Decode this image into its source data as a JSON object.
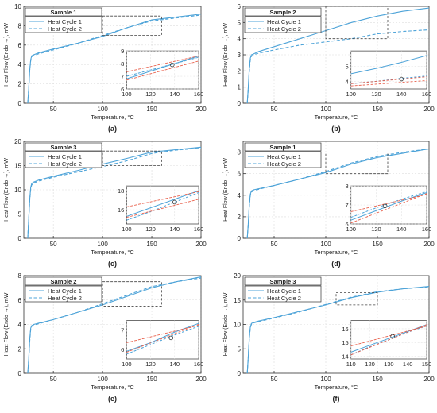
{
  "colors": {
    "cycle1": "#4da3d8",
    "cycle2": "#4da3d8",
    "inset_line": "#e8604c",
    "axis": "#333333",
    "grid": "#dddddd",
    "box": "#444444"
  },
  "chart_data": [
    {
      "type": "line",
      "panel": "(a)",
      "xlabel": "Temperature, °C",
      "ylabel": "Heat Flow (Endo →), mW",
      "xlim": [
        20,
        200
      ],
      "ylim": [
        0,
        10
      ],
      "xticks": [
        50,
        100,
        150,
        200
      ],
      "yticks": [
        0,
        2,
        4,
        6,
        8,
        10
      ],
      "grid": true,
      "legend_title": "Sample 1",
      "legend_position": "top-left",
      "series": [
        {
          "name": "Heat Cycle 1",
          "style": "solid",
          "x": [
            24,
            25,
            26,
            27,
            28,
            30,
            35,
            50,
            75,
            100,
            125,
            150,
            175,
            200
          ],
          "y": [
            0,
            1.5,
            3.4,
            4.5,
            4.9,
            5.0,
            5.2,
            5.6,
            6.2,
            6.9,
            7.8,
            8.6,
            8.9,
            9.2
          ]
        },
        {
          "name": "Heat Cycle 2",
          "style": "dashed",
          "x": [
            24,
            25,
            26,
            27,
            28,
            30,
            35,
            50,
            75,
            100,
            125,
            150,
            175,
            200
          ],
          "y": [
            0,
            1.5,
            3.4,
            4.4,
            4.8,
            4.9,
            5.1,
            5.5,
            6.2,
            7.0,
            7.8,
            8.5,
            8.8,
            9.1
          ]
        }
      ],
      "zoom_box": {
        "x": [
          100,
          160
        ],
        "y": [
          7,
          9
        ]
      },
      "inset": {
        "xlim": [
          100,
          160
        ],
        "ylim": [
          6,
          9
        ],
        "xticks": [
          100,
          120,
          140,
          160
        ],
        "yticks": [
          6,
          7,
          8,
          9
        ],
        "series": [
          {
            "name": "Heat Cycle 1",
            "style": "solid",
            "x": [
              100,
              120,
              140,
              160
            ],
            "y": [
              6.8,
              7.4,
              8.0,
              8.6
            ]
          },
          {
            "name": "Heat Cycle 2",
            "style": "dashed",
            "x": [
              100,
              120,
              140,
              160
            ],
            "y": [
              7.0,
              7.5,
              8.0,
              8.5
            ]
          }
        ],
        "fit_lines": [
          {
            "x": [
              100,
              160
            ],
            "y": [
              7.35,
              8.6
            ]
          },
          {
            "x": [
              100,
              160
            ],
            "y": [
              6.7,
              8.2
            ]
          }
        ],
        "marker": {
          "x": 138,
          "y": 7.9
        }
      }
    },
    {
      "type": "line",
      "panel": "(b)",
      "xlabel": "Temperature, °C",
      "ylabel": "Heat Flow (Endo →), mW",
      "xlim": [
        20,
        200
      ],
      "ylim": [
        0,
        6
      ],
      "xticks": [
        50,
        100,
        150,
        200
      ],
      "yticks": [
        0,
        1,
        2,
        3,
        4,
        5,
        6
      ],
      "grid": true,
      "legend_title": "Sample 2",
      "legend_position": "top-left",
      "series": [
        {
          "name": "Heat Cycle 1",
          "style": "solid",
          "x": [
            24,
            25,
            26,
            27,
            28,
            30,
            35,
            50,
            75,
            100,
            125,
            150,
            175,
            200
          ],
          "y": [
            0,
            1.0,
            2.2,
            2.8,
            3.0,
            3.05,
            3.2,
            3.5,
            4.0,
            4.5,
            5.0,
            5.4,
            5.7,
            5.9
          ]
        },
        {
          "name": "Heat Cycle 2",
          "style": "dashed",
          "x": [
            24,
            25,
            26,
            27,
            28,
            30,
            35,
            50,
            75,
            100,
            125,
            150,
            175,
            200
          ],
          "y": [
            0,
            0.9,
            2.0,
            2.7,
            2.9,
            3.0,
            3.1,
            3.3,
            3.6,
            3.8,
            4.0,
            4.3,
            4.45,
            4.55
          ]
        }
      ],
      "zoom_box": {
        "x": [
          100,
          160
        ],
        "y": [
          4,
          6
        ]
      },
      "inset": {
        "xlim": [
          100,
          160
        ],
        "ylim": [
          3.5,
          6
        ],
        "xticks": [
          100,
          120,
          140,
          160
        ],
        "yticks": [
          4,
          5
        ],
        "series": [
          {
            "name": "Heat Cycle 1",
            "style": "solid",
            "x": [
              100,
              120,
              140,
              160
            ],
            "y": [
              4.5,
              4.85,
              5.25,
              5.7
            ]
          },
          {
            "name": "Heat Cycle 2",
            "style": "dashed",
            "x": [
              100,
              120,
              140,
              160
            ],
            "y": [
              3.85,
              4.0,
              4.2,
              4.35
            ]
          }
        ],
        "fit_lines": [
          {
            "x": [
              100,
              160
            ],
            "y": [
              3.85,
              4.3
            ]
          },
          {
            "x": [
              100,
              160
            ],
            "y": [
              3.7,
              4.05
            ]
          }
        ],
        "marker": {
          "x": 140,
          "y": 4.15
        }
      }
    },
    {
      "type": "line",
      "panel": "(c)",
      "xlabel": "Temperature, °C",
      "ylabel": "Heat Flow (Endo →), mW",
      "xlim": [
        20,
        200
      ],
      "ylim": [
        0,
        20
      ],
      "xticks": [
        50,
        100,
        150,
        200
      ],
      "yticks": [
        0,
        5,
        10,
        15,
        20
      ],
      "grid": true,
      "legend_title": "Sample 3",
      "legend_position": "top-left",
      "series": [
        {
          "name": "Heat Cycle 1",
          "style": "solid",
          "x": [
            24,
            25,
            26,
            27,
            28,
            30,
            35,
            50,
            75,
            100,
            125,
            150,
            175,
            200
          ],
          "y": [
            0,
            4,
            8,
            10.5,
            11.3,
            11.6,
            12.0,
            12.8,
            14.0,
            15.3,
            16.5,
            17.8,
            18.3,
            18.8
          ]
        },
        {
          "name": "Heat Cycle 2",
          "style": "dashed",
          "x": [
            24,
            25,
            26,
            27,
            28,
            30,
            35,
            50,
            75,
            100,
            125,
            150,
            175,
            200
          ],
          "y": [
            0,
            4,
            7.8,
            10.2,
            11.0,
            11.4,
            11.8,
            12.6,
            13.7,
            14.8,
            16.0,
            17.5,
            18.2,
            18.6
          ]
        }
      ],
      "zoom_box": {
        "x": [
          100,
          160
        ],
        "y": [
          15,
          18
        ]
      },
      "inset": {
        "xlim": [
          100,
          160
        ],
        "ylim": [
          14.5,
          18.5
        ],
        "xticks": [
          100,
          120,
          140,
          160
        ],
        "yticks": [
          16,
          18
        ],
        "series": [
          {
            "name": "Heat Cycle 1",
            "style": "solid",
            "x": [
              100,
              120,
              140,
              160
            ],
            "y": [
              15.3,
              16.2,
              17.1,
              18.0
            ]
          },
          {
            "name": "Heat Cycle 2",
            "style": "dashed",
            "x": [
              100,
              120,
              140,
              160
            ],
            "y": [
              14.9,
              15.8,
              16.8,
              17.8
            ]
          }
        ],
        "fit_lines": [
          {
            "x": [
              100,
              160
            ],
            "y": [
              16.3,
              17.9
            ]
          },
          {
            "x": [
              100,
              160
            ],
            "y": [
              15.2,
              17.1
            ]
          }
        ],
        "marker": {
          "x": 140,
          "y": 16.8
        }
      }
    },
    {
      "type": "line",
      "panel": "(d)",
      "xlabel": "Temperature, °C",
      "ylabel": "Heat Flow (Endo →), mW",
      "xlim": [
        20,
        200
      ],
      "ylim": [
        0,
        9
      ],
      "xticks": [
        50,
        100,
        150,
        200
      ],
      "yticks": [
        0,
        2,
        4,
        6,
        8
      ],
      "grid": true,
      "legend_title": "Sample 1",
      "legend_position": "top-left",
      "series": [
        {
          "name": "Heat Cycle 1",
          "style": "solid",
          "x": [
            24,
            25,
            26,
            27,
            28,
            30,
            35,
            50,
            75,
            100,
            125,
            150,
            175,
            200
          ],
          "y": [
            0,
            1.4,
            3.2,
            4.1,
            4.4,
            4.5,
            4.6,
            4.9,
            5.5,
            6.1,
            6.9,
            7.5,
            7.9,
            8.3
          ]
        },
        {
          "name": "Heat Cycle 2",
          "style": "dashed",
          "x": [
            24,
            25,
            26,
            27,
            28,
            30,
            35,
            50,
            75,
            100,
            125,
            150,
            175,
            200
          ],
          "y": [
            0,
            1.3,
            3.0,
            4.0,
            4.3,
            4.4,
            4.55,
            4.9,
            5.5,
            6.2,
            7.0,
            7.6,
            8.0,
            8.3
          ]
        }
      ],
      "zoom_box": {
        "x": [
          100,
          160
        ],
        "y": [
          6,
          8
        ]
      },
      "inset": {
        "xlim": [
          100,
          160
        ],
        "ylim": [
          6,
          8
        ],
        "xticks": [
          100,
          120,
          140,
          160
        ],
        "yticks": [
          6,
          7,
          8
        ],
        "series": [
          {
            "name": "Heat Cycle 1",
            "style": "solid",
            "x": [
              100,
              120,
              140,
              160
            ],
            "y": [
              6.2,
              6.7,
              7.2,
              7.65
            ]
          },
          {
            "name": "Heat Cycle 2",
            "style": "dashed",
            "x": [
              100,
              120,
              140,
              160
            ],
            "y": [
              6.35,
              6.85,
              7.3,
              7.7
            ]
          }
        ],
        "fit_lines": [
          {
            "x": [
              100,
              160
            ],
            "y": [
              6.65,
              7.55
            ]
          },
          {
            "x": [
              100,
              160
            ],
            "y": [
              6.05,
              7.6
            ]
          }
        ],
        "marker": {
          "x": 127,
          "y": 6.95
        }
      }
    },
    {
      "type": "line",
      "panel": "(e)",
      "xlabel": "Temperature, °C",
      "ylabel": "Heat Flow (Endo →), mW",
      "xlim": [
        20,
        200
      ],
      "ylim": [
        0,
        8
      ],
      "xticks": [
        50,
        100,
        150,
        200
      ],
      "yticks": [
        0,
        2,
        4,
        6,
        8
      ],
      "grid": true,
      "legend_title": "Sample 2",
      "legend_position": "top-left",
      "series": [
        {
          "name": "Heat Cycle 1",
          "style": "solid",
          "x": [
            24,
            25,
            26,
            27,
            28,
            30,
            35,
            50,
            75,
            100,
            125,
            150,
            175,
            200
          ],
          "y": [
            0,
            1.2,
            2.8,
            3.7,
            3.9,
            4.0,
            4.1,
            4.4,
            5.0,
            5.6,
            6.3,
            7.0,
            7.5,
            7.9
          ]
        },
        {
          "name": "Heat Cycle 2",
          "style": "dashed",
          "x": [
            24,
            25,
            26,
            27,
            28,
            30,
            35,
            50,
            75,
            100,
            125,
            150,
            175,
            200
          ],
          "y": [
            0,
            1.1,
            2.6,
            3.6,
            3.85,
            3.95,
            4.05,
            4.4,
            5.0,
            5.7,
            6.4,
            7.1,
            7.5,
            7.8
          ]
        }
      ],
      "zoom_box": {
        "x": [
          100,
          160
        ],
        "y": [
          5.5,
          7.5
        ]
      },
      "inset": {
        "xlim": [
          100,
          160
        ],
        "ylim": [
          5.5,
          7.5
        ],
        "xticks": [
          100,
          120,
          140,
          160
        ],
        "yticks": [
          6,
          7
        ],
        "series": [
          {
            "name": "Heat Cycle 1",
            "style": "solid",
            "x": [
              100,
              120,
              140,
              160
            ],
            "y": [
              5.9,
              6.35,
              6.9,
              7.35
            ]
          },
          {
            "name": "Heat Cycle 2",
            "style": "dashed",
            "x": [
              100,
              120,
              140,
              160
            ],
            "y": [
              5.75,
              6.25,
              6.75,
              7.2
            ]
          }
        ],
        "fit_lines": [
          {
            "x": [
              100,
              160
            ],
            "y": [
              6.35,
              7.25
            ]
          },
          {
            "x": [
              100,
              160
            ],
            "y": [
              5.85,
              7.3
            ]
          }
        ],
        "marker": {
          "x": 137,
          "y": 6.6
        }
      }
    },
    {
      "type": "line",
      "panel": "(f)",
      "xlabel": "Temperature, °C",
      "ylabel": "Heat Flow (Endo →), mW",
      "xlim": [
        20,
        200
      ],
      "ylim": [
        0,
        20
      ],
      "xticks": [
        50,
        100,
        150,
        200
      ],
      "yticks": [
        0,
        5,
        10,
        15,
        20
      ],
      "grid": true,
      "legend_title": "Sample 3",
      "legend_position": "top-left",
      "series": [
        {
          "name": "Heat Cycle 1",
          "style": "solid",
          "x": [
            24,
            25,
            26,
            27,
            28,
            30,
            35,
            50,
            75,
            100,
            125,
            150,
            175,
            200
          ],
          "y": [
            0,
            3.5,
            7.5,
            9.5,
            10.2,
            10.4,
            10.7,
            11.4,
            12.7,
            14.0,
            15.5,
            16.6,
            17.3,
            17.8
          ]
        },
        {
          "name": "Heat Cycle 2",
          "style": "dashed",
          "x": [
            24,
            25,
            26,
            27,
            28,
            30,
            35,
            50,
            75,
            100,
            125,
            150,
            175,
            200
          ],
          "y": [
            0,
            3.4,
            7.2,
            9.3,
            10.0,
            10.3,
            10.6,
            11.3,
            12.6,
            14.1,
            15.6,
            16.7,
            17.3,
            17.7
          ]
        }
      ],
      "zoom_box": {
        "x": [
          110,
          150
        ],
        "y": [
          14,
          16.5
        ]
      },
      "inset": {
        "xlim": [
          110,
          150
        ],
        "ylim": [
          13.8,
          16.6
        ],
        "xticks": [
          110,
          120,
          130,
          140,
          150
        ],
        "yticks": [
          14,
          15,
          16
        ],
        "series": [
          {
            "name": "Heat Cycle 1",
            "style": "solid",
            "x": [
              110,
              120,
              130,
              140,
              150
            ],
            "y": [
              14.3,
              14.8,
              15.3,
              15.8,
              16.3
            ]
          },
          {
            "name": "Heat Cycle 2",
            "style": "dashed",
            "x": [
              110,
              120,
              130,
              140,
              150
            ],
            "y": [
              14.1,
              14.7,
              15.2,
              15.75,
              16.2
            ]
          }
        ],
        "fit_lines": [
          {
            "x": [
              110,
              150
            ],
            "y": [
              14.75,
              16.2
            ]
          },
          {
            "x": [
              110,
              150
            ],
            "y": [
              14.1,
              16.3
            ]
          }
        ],
        "marker": {
          "x": 132,
          "y": 15.45
        }
      }
    }
  ]
}
